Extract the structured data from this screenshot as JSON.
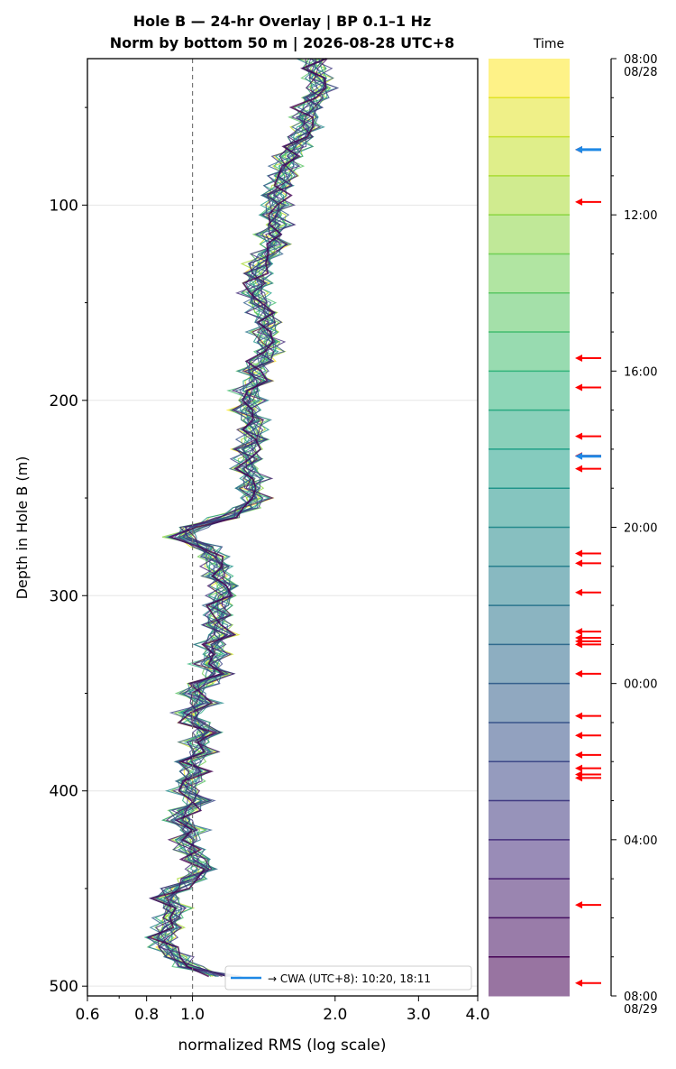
{
  "chart_data": {
    "type": "line",
    "title_line1": "Hole B — 24-hr Overlay  |  BP 0.1–1 Hz",
    "title_line2": "Norm by bottom 50 m  |  2026-08-28 UTC+8",
    "xlabel": "normalized RMS  (log scale)",
    "ylabel": "Depth in Hole B (m)",
    "x_scale": "log",
    "xlim": [
      0.6,
      4.0
    ],
    "ylim": [
      505,
      25
    ],
    "x_ticks": [
      0.6,
      0.8,
      1.0,
      2.0,
      3.0,
      4.0
    ],
    "x_tick_labels": [
      "0.6",
      "0.8",
      "1.0",
      "2.0",
      "3.0",
      "4.0"
    ],
    "y_ticks": [
      100,
      200,
      300,
      400,
      500
    ],
    "y_tick_labels": [
      "100",
      "200",
      "300",
      "400",
      "500"
    ],
    "reference_line_x": 1.0,
    "grid": true,
    "legend": {
      "position": "bottom-right",
      "label": "→ CWA (UTC+8): 10:20, 18:11",
      "color": "#1e88e5"
    },
    "depth_profile_median": {
      "depths": [
        25,
        30,
        35,
        40,
        45,
        50,
        55,
        60,
        65,
        70,
        75,
        80,
        85,
        90,
        95,
        100,
        105,
        110,
        115,
        120,
        125,
        130,
        135,
        140,
        145,
        150,
        155,
        160,
        165,
        170,
        175,
        180,
        185,
        190,
        195,
        200,
        205,
        210,
        215,
        220,
        225,
        230,
        235,
        240,
        245,
        250,
        255,
        260,
        265,
        270,
        275,
        280,
        285,
        290,
        295,
        300,
        305,
        310,
        315,
        320,
        325,
        330,
        335,
        340,
        345,
        350,
        355,
        360,
        365,
        370,
        375,
        380,
        385,
        390,
        395,
        400,
        405,
        410,
        415,
        420,
        425,
        430,
        435,
        440,
        445,
        450,
        455,
        460,
        465,
        470,
        475,
        480,
        485,
        490,
        495
      ],
      "rms": [
        1.82,
        1.8,
        1.84,
        1.88,
        1.8,
        1.78,
        1.73,
        1.75,
        1.7,
        1.65,
        1.6,
        1.58,
        1.55,
        1.55,
        1.48,
        1.52,
        1.48,
        1.52,
        1.46,
        1.5,
        1.44,
        1.4,
        1.36,
        1.38,
        1.35,
        1.38,
        1.42,
        1.44,
        1.42,
        1.45,
        1.44,
        1.4,
        1.34,
        1.38,
        1.31,
        1.33,
        1.3,
        1.35,
        1.33,
        1.36,
        1.3,
        1.32,
        1.3,
        1.35,
        1.32,
        1.36,
        1.3,
        1.18,
        1.0,
        0.95,
        1.07,
        1.1,
        1.14,
        1.12,
        1.18,
        1.16,
        1.13,
        1.14,
        1.12,
        1.15,
        1.1,
        1.12,
        1.08,
        1.14,
        1.05,
        1.0,
        1.06,
        0.98,
        1.02,
        1.08,
        1.02,
        1.05,
        0.98,
        1.02,
        0.98,
        0.97,
        1.04,
        0.96,
        0.94,
        1.0,
        0.97,
        0.99,
        1.02,
        1.06,
        1.0,
        0.92,
        0.88,
        0.92,
        0.9,
        0.89,
        0.86,
        0.88,
        0.92,
        0.98,
        1.18
      ]
    },
    "series_count": 24,
    "colorbar": {
      "title": "Time",
      "colormap": "viridis_r",
      "segments": 24,
      "ticks": [
        {
          "label": "08:00",
          "label2": "08/28",
          "hours": 0
        },
        {
          "label": "12:00",
          "label2": "",
          "hours": 4
        },
        {
          "label": "16:00",
          "label2": "",
          "hours": 8
        },
        {
          "label": "20:00",
          "label2": "",
          "hours": 12
        },
        {
          "label": "00:00",
          "label2": "",
          "hours": 16
        },
        {
          "label": "04:00",
          "label2": "",
          "hours": 20
        },
        {
          "label": "08:00",
          "label2": "08/29",
          "hours": 24
        }
      ],
      "event_markers_hours": [
        2.33,
        3.67,
        7.67,
        8.42,
        9.67,
        10.17,
        10.5,
        12.67,
        12.92,
        13.67,
        14.67,
        14.83,
        14.92,
        15.0,
        15.75,
        16.83,
        17.33,
        17.83,
        18.17,
        18.33,
        18.42,
        21.67,
        23.67
      ],
      "event_marker_color": "#ff0000",
      "cwa_markers_hours": [
        2.33,
        10.18
      ],
      "cwa_marker_color": "#1e88e5"
    }
  }
}
